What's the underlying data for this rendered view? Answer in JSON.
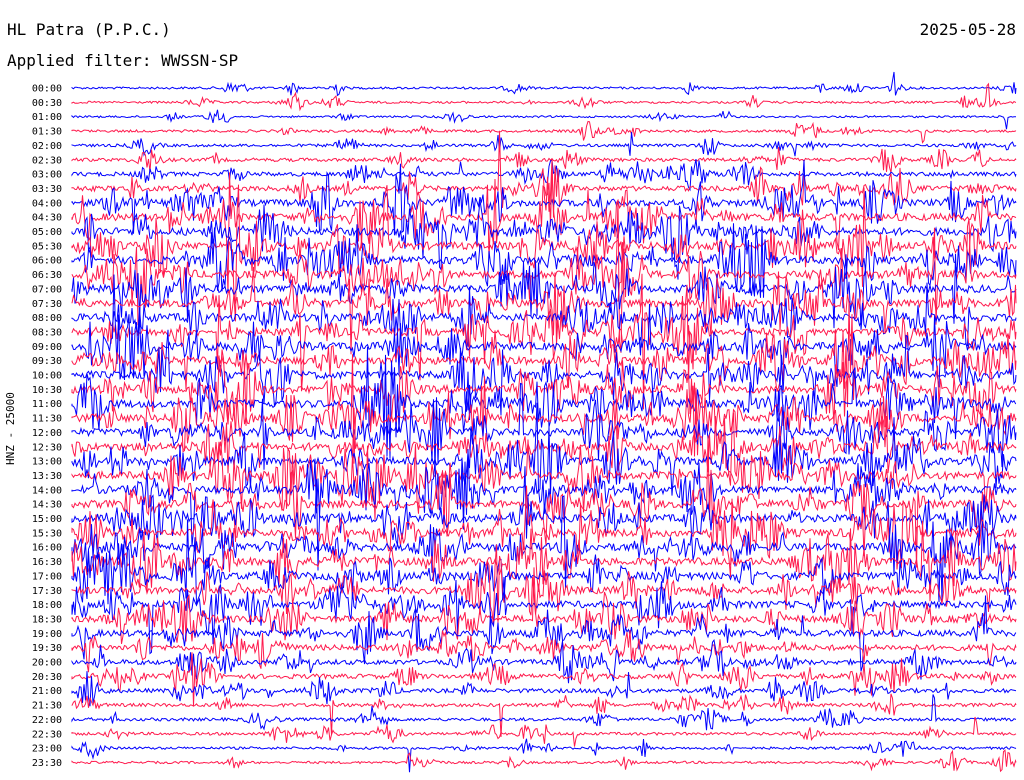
{
  "header": {
    "station": "HL Patra (P.P.C.)",
    "date": "2025-05-28",
    "filter": "Applied filter: WWSSN-SP"
  },
  "chart_data": {
    "type": "line",
    "title": "HL Patra (P.P.C.)",
    "ylabel": "HNZ - 25000",
    "row_labels": [
      "00:00",
      "00:30",
      "01:00",
      "01:30",
      "02:00",
      "02:30",
      "03:00",
      "03:30",
      "04:00",
      "04:30",
      "05:00",
      "05:30",
      "06:00",
      "06:30",
      "07:00",
      "07:30",
      "08:00",
      "08:30",
      "09:00",
      "09:30",
      "10:00",
      "10:30",
      "11:00",
      "11:30",
      "12:00",
      "12:30",
      "13:00",
      "13:30",
      "14:00",
      "14:30",
      "15:00",
      "15:30",
      "16:00",
      "16:30",
      "17:00",
      "17:30",
      "18:00",
      "18:30",
      "19:00",
      "19:30",
      "20:00",
      "20:30",
      "21:00",
      "21:30",
      "22:00",
      "22:30",
      "23:00",
      "23:30"
    ],
    "activity": [
      0.15,
      0.15,
      0.12,
      0.2,
      0.25,
      0.35,
      0.45,
      0.6,
      0.85,
      0.95,
      1.0,
      1.0,
      1.0,
      1.0,
      1.0,
      1.0,
      1.0,
      1.0,
      1.0,
      1.0,
      1.0,
      1.0,
      1.0,
      1.0,
      1.0,
      1.0,
      1.0,
      1.0,
      1.0,
      1.0,
      1.0,
      1.0,
      1.0,
      1.0,
      0.95,
      0.9,
      0.9,
      0.85,
      0.8,
      0.7,
      0.6,
      0.55,
      0.45,
      0.35,
      0.3,
      0.25,
      0.2,
      0.18
    ],
    "colors": [
      "#0000ff",
      "#ff1a4d"
    ],
    "grid": false
  }
}
